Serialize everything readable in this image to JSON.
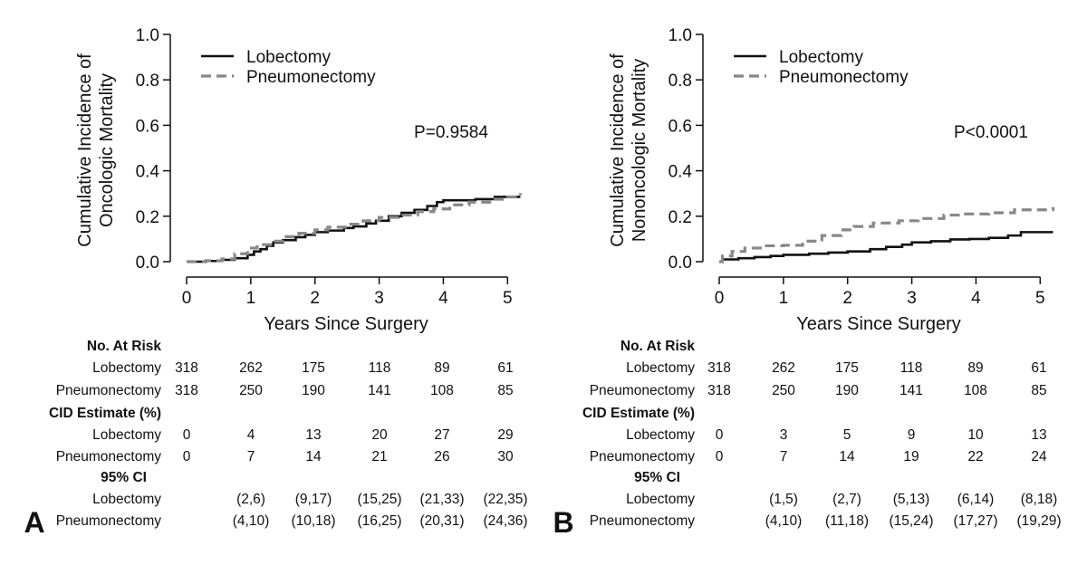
{
  "chart_data": [
    {
      "type": "line",
      "panel_label": "A",
      "xlabel": "Years Since Surgery",
      "ylabel_lines": [
        "Cumulative Incidence of",
        "Oncologic Mortality"
      ],
      "xlim": [
        0,
        5.2
      ],
      "ylim": [
        0,
        1.0
      ],
      "xticks": [
        "0",
        "1",
        "2",
        "3",
        "4",
        "5"
      ],
      "yticks": [
        "0.0",
        "0.2",
        "0.4",
        "0.6",
        "0.8",
        "1.0"
      ],
      "p_value": "P=0.9584",
      "legend_position": "top-left",
      "series": [
        {
          "name": "Lobectomy",
          "style": "solid",
          "color": "#111111",
          "points": [
            [
              0,
              0
            ],
            [
              0.3,
              0.003
            ],
            [
              0.55,
              0.008
            ],
            [
              0.75,
              0.015
            ],
            [
              0.95,
              0.03
            ],
            [
              1.05,
              0.045
            ],
            [
              1.15,
              0.055
            ],
            [
              1.25,
              0.07
            ],
            [
              1.35,
              0.085
            ],
            [
              1.5,
              0.095
            ],
            [
              1.7,
              0.108
            ],
            [
              1.85,
              0.118
            ],
            [
              2.0,
              0.13
            ],
            [
              2.2,
              0.137
            ],
            [
              2.45,
              0.148
            ],
            [
              2.6,
              0.155
            ],
            [
              2.8,
              0.168
            ],
            [
              2.95,
              0.18
            ],
            [
              3.15,
              0.2
            ],
            [
              3.35,
              0.215
            ],
            [
              3.55,
              0.228
            ],
            [
              3.75,
              0.245
            ],
            [
              3.9,
              0.262
            ],
            [
              4.0,
              0.27
            ],
            [
              4.5,
              0.275
            ],
            [
              4.8,
              0.285
            ],
            [
              5.2,
              0.285
            ]
          ]
        },
        {
          "name": "Pneumonectomy",
          "style": "dashed",
          "color": "#888888",
          "points": [
            [
              0,
              0
            ],
            [
              0.3,
              0.004
            ],
            [
              0.55,
              0.012
            ],
            [
              0.75,
              0.035
            ],
            [
              0.95,
              0.06
            ],
            [
              1.1,
              0.075
            ],
            [
              1.35,
              0.09
            ],
            [
              1.55,
              0.11
            ],
            [
              1.75,
              0.125
            ],
            [
              2.0,
              0.14
            ],
            [
              2.2,
              0.152
            ],
            [
              2.5,
              0.165
            ],
            [
              2.75,
              0.18
            ],
            [
              3.0,
              0.195
            ],
            [
              3.3,
              0.205
            ],
            [
              3.6,
              0.22
            ],
            [
              3.85,
              0.232
            ],
            [
              4.1,
              0.25
            ],
            [
              4.4,
              0.262
            ],
            [
              4.75,
              0.275
            ],
            [
              5.0,
              0.285
            ],
            [
              5.2,
              0.302
            ]
          ]
        }
      ],
      "table": {
        "risk_header": "No. At Risk",
        "risk_rows": [
          {
            "label": "Lobectomy",
            "values": [
              "318",
              "262",
              "175",
              "118",
              "89",
              "61"
            ]
          },
          {
            "label": "Pneumonectomy",
            "values": [
              "318",
              "250",
              "190",
              "141",
              "108",
              "85"
            ]
          }
        ],
        "cid_header": "CID Estimate (%)",
        "cid_rows": [
          {
            "label": "Lobectomy",
            "values": [
              "0",
              "4",
              "13",
              "20",
              "27",
              "29"
            ]
          },
          {
            "label": "Pneumonectomy",
            "values": [
              "0",
              "7",
              "14",
              "21",
              "26",
              "30"
            ]
          }
        ],
        "ci_header": "95% CI",
        "ci_rows": [
          {
            "label": "Lobectomy",
            "values": [
              "",
              "(2,6)",
              "(9,17)",
              "(15,25)",
              "(21,33)",
              "(22,35)"
            ]
          },
          {
            "label": "Pneumonectomy",
            "values": [
              "",
              "(4,10)",
              "(10,18)",
              "(16,25)",
              "(20,31)",
              "(24,36)"
            ]
          }
        ]
      }
    },
    {
      "type": "line",
      "panel_label": "B",
      "xlabel": "Years Since Surgery",
      "ylabel_lines": [
        "Cumulative Incidence of",
        "Nononcologic Mortality"
      ],
      "xlim": [
        0,
        5.2
      ],
      "ylim": [
        0,
        1.0
      ],
      "xticks": [
        "0",
        "1",
        "2",
        "3",
        "4",
        "5"
      ],
      "yticks": [
        "0.0",
        "0.2",
        "0.4",
        "0.6",
        "0.8",
        "1.0"
      ],
      "p_value": "P<0.0001",
      "legend_position": "top-left",
      "series": [
        {
          "name": "Lobectomy",
          "style": "solid",
          "color": "#111111",
          "points": [
            [
              0,
              0
            ],
            [
              0.05,
              0.01
            ],
            [
              0.3,
              0.015
            ],
            [
              0.55,
              0.02
            ],
            [
              0.8,
              0.025
            ],
            [
              1.0,
              0.03
            ],
            [
              1.4,
              0.035
            ],
            [
              1.7,
              0.04
            ],
            [
              2.0,
              0.045
            ],
            [
              2.35,
              0.055
            ],
            [
              2.6,
              0.065
            ],
            [
              2.85,
              0.075
            ],
            [
              3.0,
              0.085
            ],
            [
              3.3,
              0.09
            ],
            [
              3.6,
              0.098
            ],
            [
              3.9,
              0.1
            ],
            [
              4.2,
              0.105
            ],
            [
              4.5,
              0.115
            ],
            [
              4.7,
              0.13
            ],
            [
              5.2,
              0.13
            ]
          ]
        },
        {
          "name": "Pneumonectomy",
          "style": "dashed",
          "color": "#888888",
          "points": [
            [
              0,
              0
            ],
            [
              0.05,
              0.025
            ],
            [
              0.2,
              0.045
            ],
            [
              0.4,
              0.06
            ],
            [
              0.7,
              0.07
            ],
            [
              1.0,
              0.072
            ],
            [
              1.3,
              0.09
            ],
            [
              1.6,
              0.115
            ],
            [
              1.9,
              0.14
            ],
            [
              2.1,
              0.155
            ],
            [
              2.4,
              0.17
            ],
            [
              2.8,
              0.18
            ],
            [
              3.1,
              0.19
            ],
            [
              3.5,
              0.205
            ],
            [
              3.8,
              0.21
            ],
            [
              4.2,
              0.215
            ],
            [
              4.6,
              0.228
            ],
            [
              5.2,
              0.24
            ]
          ]
        }
      ],
      "table": {
        "risk_header": "No. At Risk",
        "risk_rows": [
          {
            "label": "Lobectomy",
            "values": [
              "318",
              "262",
              "175",
              "118",
              "89",
              "61"
            ]
          },
          {
            "label": "Pneumonectomy",
            "values": [
              "318",
              "250",
              "190",
              "141",
              "108",
              "85"
            ]
          }
        ],
        "cid_header": "CID Estimate (%)",
        "cid_rows": [
          {
            "label": "Lobectomy",
            "values": [
              "0",
              "3",
              "5",
              "9",
              "10",
              "13"
            ]
          },
          {
            "label": "Pneumonectomy",
            "values": [
              "0",
              "7",
              "14",
              "19",
              "22",
              "24"
            ]
          }
        ],
        "ci_header": "95% CI",
        "ci_rows": [
          {
            "label": "Lobectomy",
            "values": [
              "",
              "(1,5)",
              "(2,7)",
              "(5,13)",
              "(6,14)",
              "(8,18)"
            ]
          },
          {
            "label": "Pneumonectomy",
            "values": [
              "",
              "(4,10)",
              "(11,18)",
              "(15,24)",
              "(17,27)",
              "(19,29)"
            ]
          }
        ]
      }
    }
  ]
}
